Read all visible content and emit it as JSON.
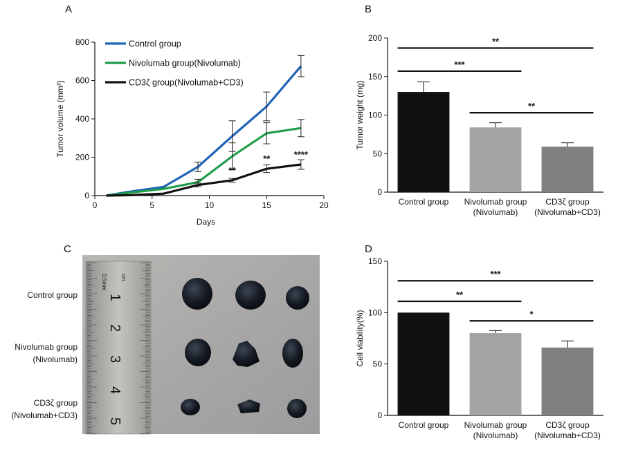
{
  "panels": {
    "A": {
      "letter": "A",
      "chart_data": {
        "type": "line",
        "xlabel": "Days",
        "ylabel": "Tumor volume (mm³)",
        "xlim": [
          0,
          20
        ],
        "ylim": [
          0,
          800
        ],
        "xticks": [
          0,
          5,
          10,
          15,
          20
        ],
        "yticks": [
          0,
          200,
          400,
          600,
          800
        ],
        "legend_position": "top-left",
        "series": [
          {
            "name": "Control group",
            "color": "#1f63b6",
            "x": [
              1,
              3,
              6,
              9,
              12,
              15,
              18
            ],
            "y": [
              0,
              20,
              45,
              150,
              310,
              465,
              675
            ],
            "err": [
              0,
              0,
              0,
              25,
              80,
              75,
              55
            ]
          },
          {
            "name": "Nivolumab group(Nivolumab)",
            "color": "#1f9d4a",
            "x": [
              1,
              3,
              6,
              9,
              12,
              15,
              18
            ],
            "y": [
              0,
              15,
              35,
              70,
              205,
              325,
              352
            ],
            "err": [
              0,
              0,
              0,
              15,
              70,
              55,
              45
            ]
          },
          {
            "name": "CD3ζ group(Nivolumab+CD3)",
            "color": "#111111",
            "x": [
              1,
              3,
              6,
              9,
              12,
              15,
              18
            ],
            "y": [
              0,
              2,
              10,
              55,
              80,
              140,
              162
            ],
            "err": [
              0,
              0,
              0,
              10,
              10,
              20,
              25
            ]
          }
        ],
        "annotations": [
          {
            "text": "**",
            "x": 12,
            "y": 80
          },
          {
            "text": "**",
            "x": 15,
            "y": 140
          },
          {
            "text": "****",
            "x": 18,
            "y": 162
          }
        ]
      }
    },
    "B": {
      "letter": "B",
      "chart_data": {
        "type": "bar",
        "ylabel": "Tumor weight (mg)",
        "ylim": [
          0,
          200
        ],
        "yticks": [
          0,
          50,
          100,
          150,
          200
        ],
        "categories": [
          "Control group",
          "Nivolumab group\n(Nivolumab)",
          "CD3ζ group\n(Nivolumab+CD3)"
        ],
        "values": [
          130,
          84,
          59
        ],
        "errors": [
          13,
          6,
          5
        ],
        "colors": [
          "#111111",
          "#a3a3a6",
          "#808080"
        ],
        "significance": [
          {
            "from": 0,
            "to": 2,
            "label": "**",
            "level": 187
          },
          {
            "from": 0,
            "to": 1,
            "label": "***",
            "level": 157
          },
          {
            "from": 1,
            "to": 2,
            "label": "**",
            "level": 103
          }
        ]
      }
    },
    "C": {
      "letter": "C",
      "row_labels": [
        "Control group",
        "Nivolumab group",
        "(Nivolumab)",
        "CD3ζ group",
        "(Nivolumab+CD3)"
      ]
    },
    "D": {
      "letter": "D",
      "chart_data": {
        "type": "bar",
        "ylabel": "Cell viability(%)",
        "ylim": [
          0,
          150
        ],
        "yticks": [
          0,
          50,
          100,
          150
        ],
        "categories": [
          "Control group",
          "Nivolumab group\n(Nivolumab)",
          "CD3ζ group\n(Nivolumab+CD3)"
        ],
        "values": [
          100,
          80,
          66
        ],
        "errors": [
          0,
          2.5,
          6.5
        ],
        "colors": [
          "#111111",
          "#a3a3a6",
          "#808080"
        ],
        "significance": [
          {
            "from": 0,
            "to": 2,
            "label": "***",
            "level": 131
          },
          {
            "from": 0,
            "to": 1,
            "label": "**",
            "level": 111
          },
          {
            "from": 1,
            "to": 2,
            "label": "*",
            "level": 92
          }
        ]
      }
    }
  }
}
